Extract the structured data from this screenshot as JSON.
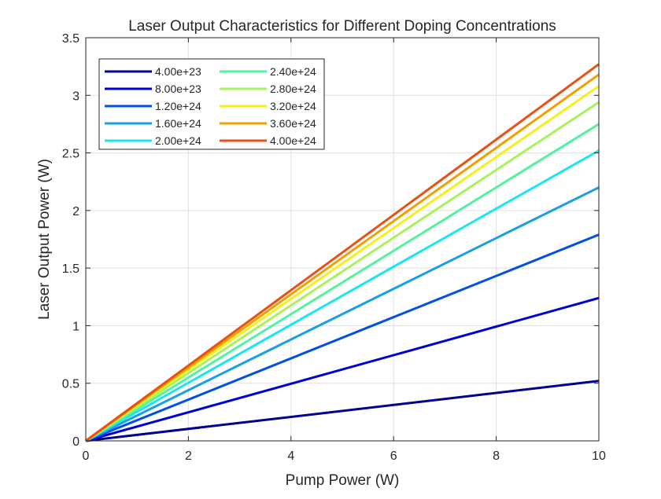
{
  "chart_data": {
    "type": "line",
    "title": "Laser Output Characteristics for Different Doping Concentrations",
    "xlabel": "Pump Power (W)",
    "ylabel": "Laser Output Power (W)",
    "xlim": [
      0,
      10
    ],
    "ylim": [
      0,
      3.5
    ],
    "xticks": [
      "0",
      "2",
      "4",
      "6",
      "8",
      "10"
    ],
    "yticks": [
      "0",
      "0.5",
      "1",
      "1.5",
      "2",
      "2.5",
      "3",
      "3.5"
    ],
    "grid": true,
    "legend_position": "top-left",
    "legend_columns": 2,
    "x": [
      0,
      10
    ],
    "series": [
      {
        "name": "4.00e+23",
        "color": "#00008f",
        "values": [
          0,
          0.52
        ]
      },
      {
        "name": "8.00e+23",
        "color": "#0000d6",
        "values": [
          0,
          1.24
        ]
      },
      {
        "name": "1.20e+24",
        "color": "#0050e8",
        "values": [
          0,
          1.79
        ]
      },
      {
        "name": "1.60e+24",
        "color": "#1a9ee6",
        "values": [
          0,
          2.2
        ]
      },
      {
        "name": "2.00e+24",
        "color": "#1ae6f2",
        "values": [
          0,
          2.52
        ]
      },
      {
        "name": "2.40e+24",
        "color": "#52f29e",
        "values": [
          0,
          2.75
        ]
      },
      {
        "name": "2.80e+24",
        "color": "#a8f25c",
        "values": [
          0,
          2.94
        ]
      },
      {
        "name": "3.20e+24",
        "color": "#f2f21a",
        "values": [
          0,
          3.08
        ]
      },
      {
        "name": "3.60e+24",
        "color": "#f2a000",
        "values": [
          0,
          3.18
        ]
      },
      {
        "name": "4.00e+24",
        "color": "#e85014",
        "values": [
          0,
          3.27
        ]
      }
    ]
  }
}
